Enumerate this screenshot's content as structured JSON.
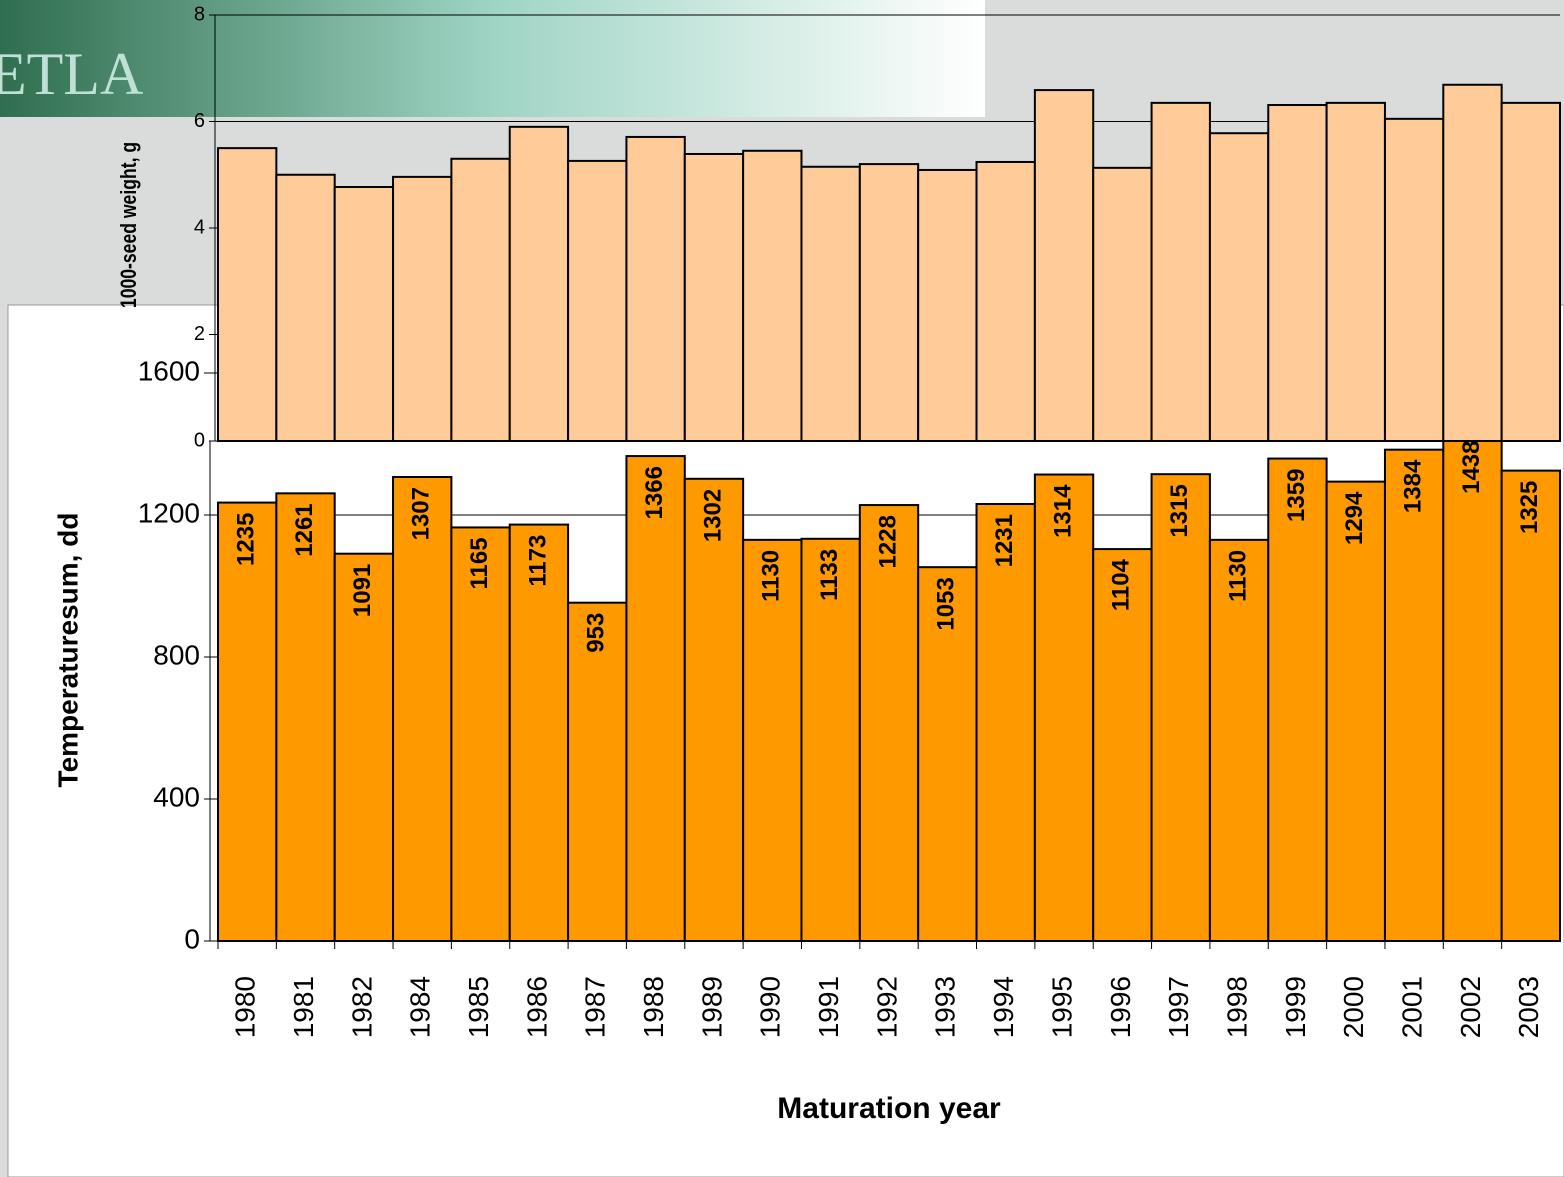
{
  "logo_text": "ETLA",
  "chart_data": [
    {
      "type": "bar",
      "y_label": "1000-seed weight, g",
      "values": [
        5.5,
        5.0,
        4.77,
        4.96,
        5.3,
        5.9,
        5.26,
        5.71,
        5.39,
        5.45,
        5.15,
        5.2,
        5.09,
        5.24,
        6.59,
        5.13,
        6.35,
        5.78,
        6.31,
        6.35,
        6.05,
        6.69,
        6.35
      ],
      "color": "#ffcc99",
      "ylim": [
        0,
        8
      ],
      "yticks": [
        0,
        2,
        4,
        6,
        8
      ],
      "grid": true
    },
    {
      "type": "bar",
      "y_label": "Temperaturesum, dd",
      "x_label": "Maturation year",
      "categories": [
        "1980",
        "1981",
        "1982",
        "1984",
        "1985",
        "1986",
        "1987",
        "1988",
        "1989",
        "1990",
        "1991",
        "1992",
        "1993",
        "1994",
        "1995",
        "1996",
        "1997",
        "1998",
        "1999",
        "2000",
        "2001",
        "2002",
        "2003"
      ],
      "values": [
        1235,
        1261,
        1091,
        1307,
        1165,
        1173,
        953,
        1366,
        1302,
        1130,
        1133,
        1228,
        1053,
        1231,
        1314,
        1104,
        1315,
        1130,
        1359,
        1294,
        1384,
        1438,
        1325
      ],
      "color": "#ff9900",
      "ylim": [
        0,
        1600
      ],
      "yticks": [
        0,
        400,
        800,
        1200,
        1600
      ],
      "grid": true
    }
  ]
}
